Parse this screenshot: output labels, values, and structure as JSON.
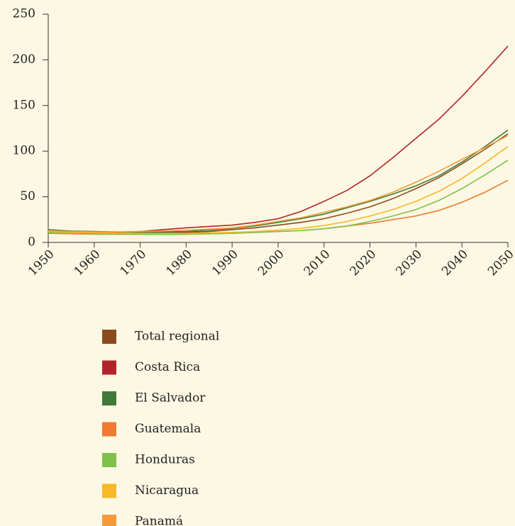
{
  "chart_data": {
    "type": "line",
    "x": [
      1950,
      1955,
      1960,
      1965,
      1970,
      1975,
      1980,
      1985,
      1990,
      1995,
      2000,
      2005,
      2010,
      2015,
      2020,
      2025,
      2030,
      2035,
      2040,
      2045,
      2050
    ],
    "xlim": [
      1950,
      2050
    ],
    "xticks": [
      1950,
      1960,
      1970,
      1980,
      1990,
      2000,
      2010,
      2020,
      2030,
      2040,
      2050
    ],
    "ylim": [
      0,
      250
    ],
    "yticks": [
      0,
      50,
      100,
      150,
      200,
      250
    ],
    "series": [
      {
        "name": "Total regional",
        "color": "#8b4a1c",
        "values": [
          12,
          11,
          10.5,
          10,
          10,
          10.5,
          11,
          12,
          14,
          16,
          19,
          22,
          26,
          32,
          39,
          48,
          59,
          71,
          86,
          102,
          119
        ]
      },
      {
        "name": "Costa Rica",
        "color": "#b5232a",
        "values": [
          12,
          11,
          10.5,
          11,
          12,
          14,
          16,
          17.5,
          19,
          22,
          26,
          34,
          45,
          57,
          73,
          93,
          114,
          135,
          160,
          187,
          215
        ]
      },
      {
        "name": "El Salvador",
        "color": "#3f7a3a",
        "values": [
          14,
          12.5,
          12,
          11.5,
          11,
          11.5,
          12,
          13.5,
          15.5,
          18,
          22,
          26,
          31,
          38,
          45,
          53,
          62,
          73,
          88,
          105,
          123
        ]
      },
      {
        "name": "Guatemala",
        "color": "#f07a30",
        "values": [
          10,
          9.5,
          9,
          9,
          9,
          9,
          9,
          9.5,
          10,
          11,
          12,
          13,
          15,
          18,
          21,
          25,
          29,
          35,
          44,
          55,
          68
        ]
      },
      {
        "name": "Honduras",
        "color": "#7cc24a",
        "values": [
          11,
          10,
          9.5,
          9,
          9,
          9,
          9,
          9.5,
          10,
          11,
          12,
          13,
          15,
          18,
          23,
          29,
          36,
          46,
          59,
          74,
          90
        ]
      },
      {
        "name": "Nicaragua",
        "color": "#f7b82a",
        "values": [
          12,
          11,
          10.5,
          10,
          10,
          10,
          10,
          10.5,
          11,
          12,
          13.5,
          15.5,
          18.5,
          23,
          29,
          36,
          45,
          56,
          70,
          87,
          105
        ]
      },
      {
        "name": "Panamá",
        "color": "#f59a3a",
        "values": [
          13,
          12,
          11.5,
          11.5,
          12,
          12.5,
          13.5,
          14.5,
          16,
          19,
          23,
          27,
          33,
          39,
          46,
          55,
          66,
          78,
          91,
          104,
          117
        ]
      }
    ]
  }
}
